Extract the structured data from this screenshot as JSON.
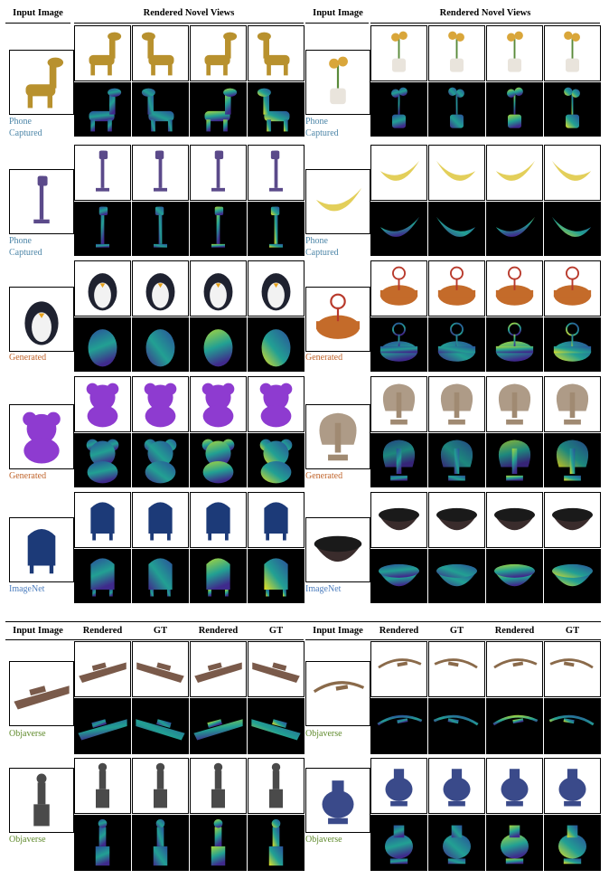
{
  "top_table": {
    "header_input": "Input Image",
    "header_views": "Rendered Novel Views",
    "rows": [
      {
        "left": {
          "source": "Phone\nCaptured",
          "cls": "phone",
          "obj": "giraffe-toy"
        },
        "right": {
          "source": "Phone\nCaptured",
          "cls": "phone",
          "obj": "flower-pot"
        }
      },
      {
        "left": {
          "source": "Phone\nCaptured",
          "cls": "phone",
          "obj": "vacuum-cleaner"
        },
        "right": {
          "source": "Phone\nCaptured",
          "cls": "phone",
          "obj": "banana"
        }
      },
      {
        "left": {
          "source": "Generated",
          "cls": "gen",
          "obj": "penguin"
        },
        "right": {
          "source": "Generated",
          "cls": "gen",
          "obj": "cake"
        }
      },
      {
        "left": {
          "source": "Generated",
          "cls": "gen",
          "obj": "teddy-bear"
        },
        "right": {
          "source": "Generated",
          "cls": "gen",
          "obj": "peacock-statue"
        }
      },
      {
        "left": {
          "source": "ImageNet",
          "cls": "imn",
          "obj": "mailbox"
        },
        "right": {
          "source": "ImageNet",
          "cls": "imn",
          "obj": "bowl"
        }
      }
    ]
  },
  "bottom_table": {
    "header_input": "Input Image",
    "col_labels": [
      "Rendered",
      "GT",
      "Rendered",
      "GT"
    ],
    "rows": [
      {
        "left": {
          "source": "Objaverse",
          "cls": "obj",
          "obj": "ship"
        },
        "right": {
          "source": "Objaverse",
          "cls": "obj",
          "obj": "rope-tool"
        }
      },
      {
        "left": {
          "source": "Objaverse",
          "cls": "obj",
          "obj": "statue"
        },
        "right": {
          "source": "Objaverse",
          "cls": "obj",
          "obj": "vase"
        }
      }
    ]
  },
  "colors": {
    "phone": "#4d86a8",
    "generated": "#c0642b",
    "imagenet": "#4f7fbf",
    "objaverse": "#5f8a2b",
    "giraffe-toy": "#b8912e",
    "flower-pot": "#d9a63a",
    "vacuum-cleaner": "#5b4a8a",
    "banana": "#e3cf5a",
    "penguin": "#1f2230",
    "cake": "#c46b2a",
    "teddy-bear": "#8e3bd0",
    "peacock-statue": "#a08a72",
    "mailbox": "#1c3a78",
    "bowl": "#3a2c2c",
    "ship": "#7a5a4a",
    "rope-tool": "#8a6a4a",
    "statue": "#4a4a4a",
    "vase": "#3a4a8a"
  }
}
